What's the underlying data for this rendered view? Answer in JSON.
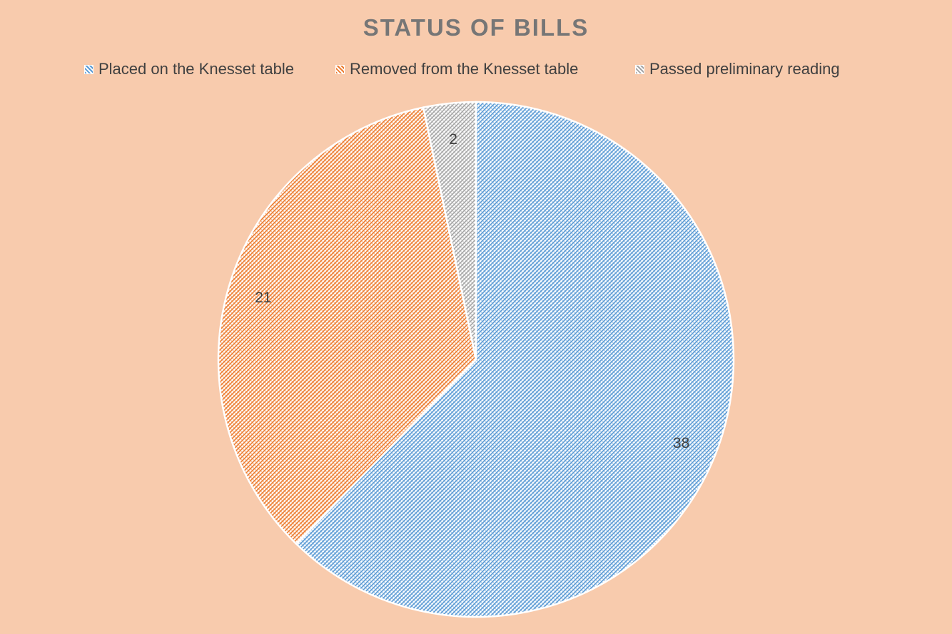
{
  "chart_data": {
    "type": "pie",
    "title": "STATUS OF BILLS",
    "categories": [
      "Placed on the Knesset table",
      "Removed from the Knesset table",
      "Passed preliminary reading"
    ],
    "values": [
      38,
      21,
      2
    ],
    "data_labels": [
      "38",
      "21",
      "2"
    ],
    "colors": [
      "#5B9BD5",
      "#ED7D31",
      "#A5A5A5"
    ],
    "fill_pattern": "hatched",
    "legend_position": "top"
  }
}
